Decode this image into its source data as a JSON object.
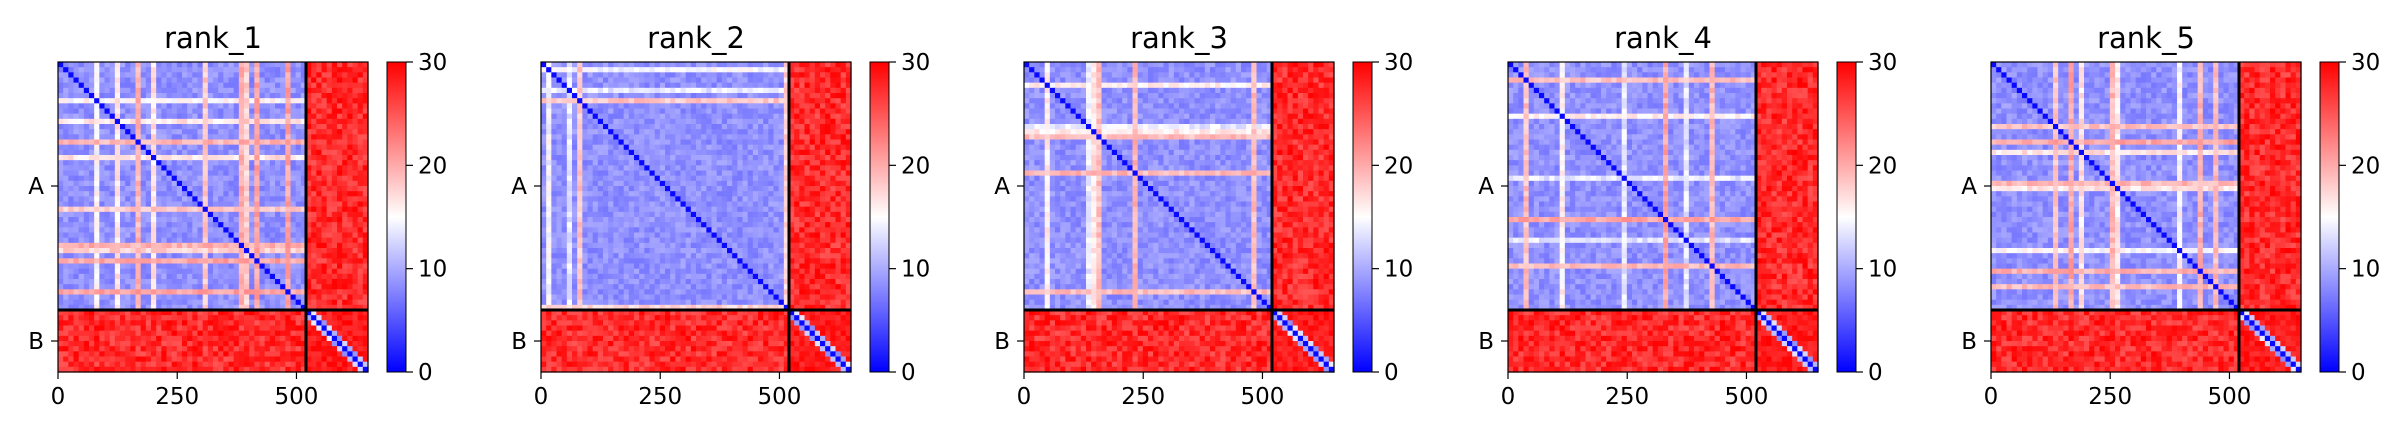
{
  "chart_data": {
    "type": "heatmap",
    "colormap": {
      "name": "bwr",
      "low": "#0000ff",
      "mid": "#ffffff",
      "high": "#ff0000"
    },
    "colorbar": {
      "range": [
        0,
        30
      ],
      "ticks": [
        "0",
        "10",
        "20",
        "30"
      ]
    },
    "x_ticks": [
      {
        "value": 0,
        "label": "0"
      },
      {
        "value": 250,
        "label": "250"
      },
      {
        "value": 500,
        "label": "500"
      }
    ],
    "x_range": [
      0,
      650
    ],
    "chain_boundary": 520,
    "chains": [
      {
        "label": "A",
        "start": 0,
        "end": 520
      },
      {
        "label": "B",
        "start": 520,
        "end": 650
      }
    ],
    "panels": [
      {
        "title": "rank_1"
      },
      {
        "title": "rank_2"
      },
      {
        "title": "rank_3"
      },
      {
        "title": "rank_4"
      },
      {
        "title": "rank_5"
      }
    ]
  }
}
